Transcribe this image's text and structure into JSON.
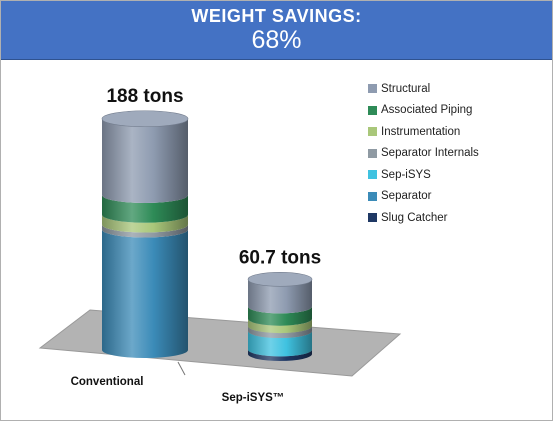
{
  "header": {
    "title": "WEIGHT SAVINGS:",
    "value": "68%"
  },
  "chart_data": {
    "type": "bar",
    "stacked": true,
    "style": "3d-cylinder",
    "categories": [
      "Conventional",
      "Sep-iSYS™"
    ],
    "totals": [
      188,
      60.7
    ],
    "total_labels": [
      "188 tons",
      "60.7 tons"
    ],
    "series": [
      {
        "name": "Slug Catcher",
        "color": "#1f3864",
        "values": [
          0,
          3.7
        ]
      },
      {
        "name": "Separator",
        "color": "#3b8bb8",
        "values": [
          98,
          0
        ]
      },
      {
        "name": "Sep-iSYS",
        "color": "#3fc2e0",
        "values": [
          0,
          15
        ]
      },
      {
        "name": "Separator Internals",
        "color": "#8f9aa3",
        "values": [
          4,
          4
        ]
      },
      {
        "name": "Instrumentation",
        "color": "#a9c77a",
        "values": [
          8,
          6
        ]
      },
      {
        "name": "Associated Piping",
        "color": "#2e8b57",
        "values": [
          16,
          10
        ]
      },
      {
        "name": "Structural",
        "color": "#8e9bb0",
        "values": [
          62,
          22
        ]
      }
    ],
    "legend_order": [
      "Structural",
      "Associated Piping",
      "Instrumentation",
      "Separator Internals",
      "Sep-iSYS",
      "Separator",
      "Slug Catcher"
    ],
    "legend_position": "right",
    "grid": false
  }
}
